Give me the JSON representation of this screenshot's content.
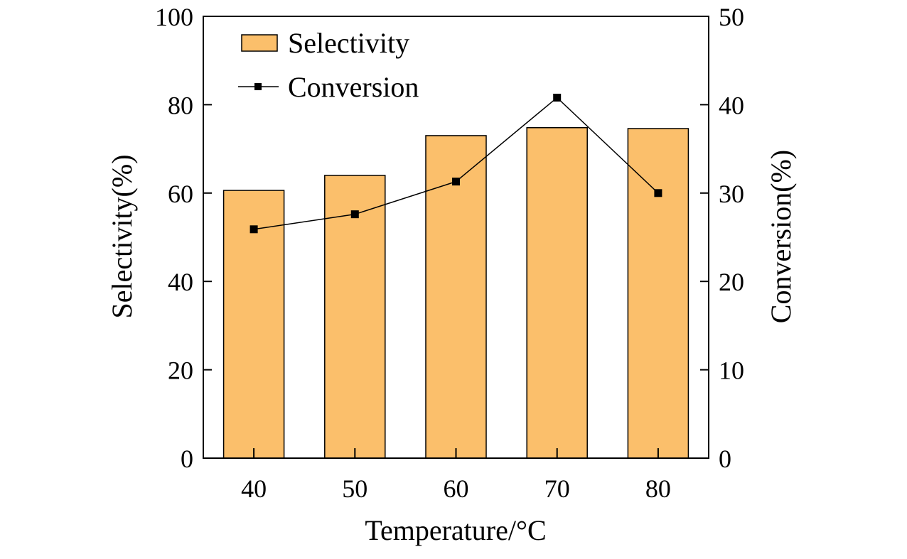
{
  "chart_data": {
    "type": "bar",
    "categories": [
      "40",
      "50",
      "60",
      "70",
      "80"
    ],
    "series": [
      {
        "name": "Selectivity",
        "type": "bar",
        "axis": "left",
        "values": [
          60.6,
          64.0,
          73.0,
          74.8,
          74.6
        ],
        "color": "#fbbf6b"
      },
      {
        "name": "Conversion",
        "type": "line",
        "axis": "right",
        "values": [
          25.9,
          27.6,
          31.3,
          40.8,
          30.0
        ],
        "color": "#000000"
      }
    ],
    "xlabel": "Temperature/°C",
    "ylabel_left": "Selectivity(%)",
    "ylabel_right": "Conversion(%)",
    "ylim_left": [
      0,
      100
    ],
    "ylim_right": [
      0,
      50
    ],
    "yticks_left": [
      "0",
      "20",
      "40",
      "60",
      "80",
      "100"
    ],
    "yticks_right": [
      "0",
      "10",
      "20",
      "30",
      "40",
      "50"
    ],
    "legend": {
      "position": "top-left",
      "entries": [
        "Selectivity",
        "Conversion"
      ]
    }
  }
}
